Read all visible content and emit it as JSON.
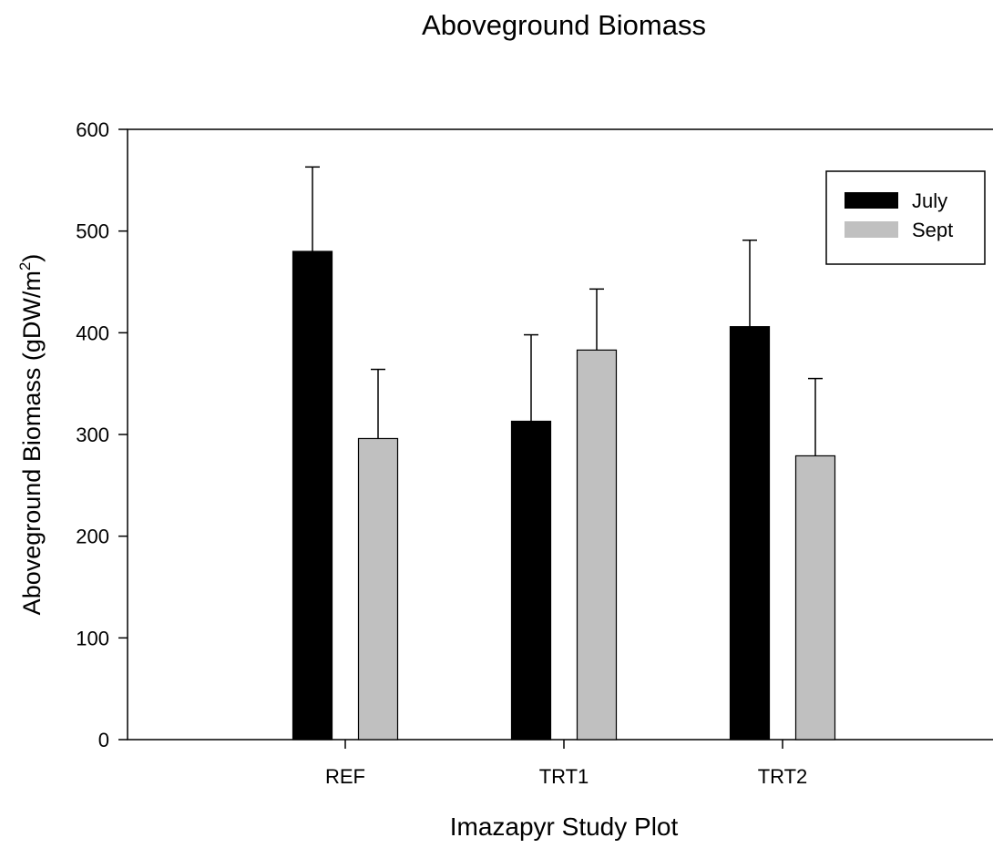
{
  "chart_data": {
    "type": "bar",
    "title": "Aboveground Biomass",
    "xlabel": "Imazapyr Study Plot",
    "ylabel": "Aboveground Biomass (gDW/m",
    "ylabel_superscript": "2",
    "ylabel_suffix": ")",
    "categories": [
      "REF",
      "TRT1",
      "TRT2"
    ],
    "ylim": [
      0,
      600
    ],
    "yticks": [
      0,
      100,
      200,
      300,
      400,
      500,
      600
    ],
    "grid": false,
    "legend_position": "top-right",
    "series": [
      {
        "name": "July",
        "color": "#000000",
        "values": [
          480,
          313,
          406
        ],
        "errors": [
          83,
          85,
          85
        ]
      },
      {
        "name": "Sept",
        "color": "#c0c0c0",
        "values": [
          296,
          383,
          279
        ],
        "errors": [
          68,
          60,
          76
        ]
      }
    ]
  }
}
